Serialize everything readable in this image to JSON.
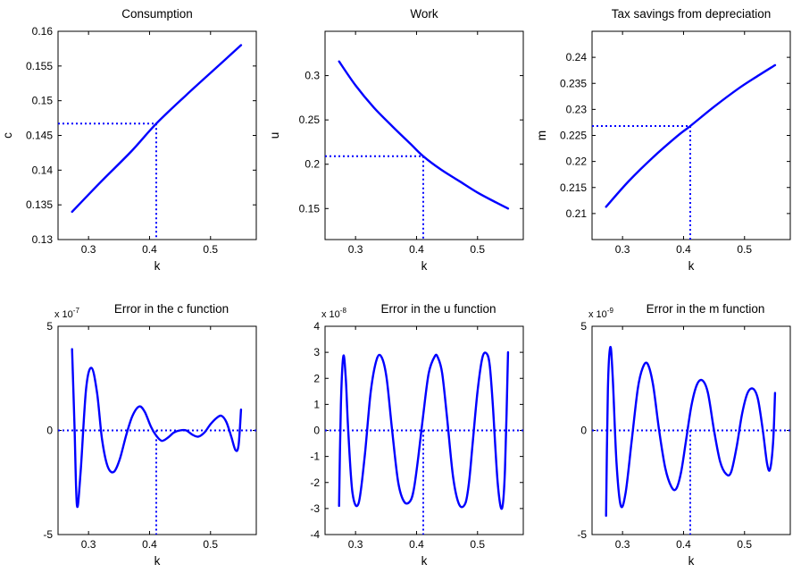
{
  "chart_data": [
    {
      "type": "line",
      "title": "Consumption",
      "xlabel": "k",
      "ylabel": "c",
      "exponent": "",
      "xlim": [
        0.25,
        0.575
      ],
      "ylim": [
        0.13,
        0.16
      ],
      "xticks": [
        0.3,
        0.4,
        0.5
      ],
      "xtick_labels": [
        "0.3",
        "0.4",
        "0.5"
      ],
      "yticks": [
        0.13,
        0.135,
        0.14,
        0.145,
        0.15,
        0.155,
        0.16
      ],
      "ytick_labels": [
        "0.13",
        "0.135",
        "0.14",
        "0.145",
        "0.15",
        "0.155",
        "0.16"
      ],
      "x": [
        0.273,
        0.32,
        0.37,
        0.411,
        0.46,
        0.51,
        0.55
      ],
      "y": [
        0.134,
        0.1383,
        0.1427,
        0.1467,
        0.1508,
        0.1548,
        0.158
      ],
      "guide": {
        "x": 0.411,
        "y": 0.1467
      }
    },
    {
      "type": "line",
      "title": "Work",
      "xlabel": "k",
      "ylabel": "u",
      "exponent": "",
      "xlim": [
        0.25,
        0.575
      ],
      "ylim": [
        0.115,
        0.35
      ],
      "xticks": [
        0.3,
        0.4,
        0.5
      ],
      "xtick_labels": [
        "0.3",
        "0.4",
        "0.5"
      ],
      "yticks": [
        0.15,
        0.2,
        0.25,
        0.3
      ],
      "ytick_labels": [
        "0.15",
        "0.2",
        "0.25",
        "0.3"
      ],
      "x": [
        0.273,
        0.3,
        0.33,
        0.36,
        0.39,
        0.411,
        0.44,
        0.47,
        0.5,
        0.53,
        0.55
      ],
      "y": [
        0.316,
        0.289,
        0.264,
        0.243,
        0.223,
        0.209,
        0.194,
        0.181,
        0.168,
        0.157,
        0.15
      ],
      "guide": {
        "x": 0.411,
        "y": 0.209
      }
    },
    {
      "type": "line",
      "title": "Tax savings from depreciation",
      "xlabel": "k",
      "ylabel": "m",
      "exponent": "",
      "xlim": [
        0.25,
        0.575
      ],
      "ylim": [
        0.205,
        0.245
      ],
      "xticks": [
        0.3,
        0.4,
        0.5
      ],
      "xtick_labels": [
        "0.3",
        "0.4",
        "0.5"
      ],
      "yticks": [
        0.21,
        0.215,
        0.22,
        0.225,
        0.23,
        0.235,
        0.24
      ],
      "ytick_labels": [
        "0.21",
        "0.215",
        "0.22",
        "0.225",
        "0.23",
        "0.235",
        "0.24"
      ],
      "x": [
        0.273,
        0.31,
        0.35,
        0.39,
        0.411,
        0.45,
        0.49,
        0.52,
        0.55
      ],
      "y": [
        0.2113,
        0.2162,
        0.2208,
        0.2249,
        0.2268,
        0.2305,
        0.234,
        0.2363,
        0.2385
      ],
      "guide": {
        "x": 0.411,
        "y": 0.2268
      }
    },
    {
      "type": "line",
      "title": "Error in the c function",
      "xlabel": "k",
      "ylabel": "",
      "exponent": "x 10",
      "exponent_power": "-7",
      "xlim": [
        0.25,
        0.575
      ],
      "ylim": [
        -5,
        5
      ],
      "xticks": [
        0.3,
        0.4,
        0.5
      ],
      "xtick_labels": [
        "0.3",
        "0.4",
        "0.5"
      ],
      "yticks": [
        -5,
        0,
        5
      ],
      "ytick_labels": [
        "-5",
        "0",
        "5"
      ],
      "x": [
        0.273,
        0.277,
        0.281,
        0.287,
        0.296,
        0.305,
        0.314,
        0.322,
        0.331,
        0.341,
        0.351,
        0.362,
        0.372,
        0.383,
        0.392,
        0.402,
        0.411,
        0.42,
        0.43,
        0.44,
        0.45,
        0.46,
        0.47,
        0.48,
        0.49,
        0.5,
        0.51,
        0.518,
        0.526,
        0.534,
        0.541,
        0.546,
        0.55
      ],
      "y": [
        3.9,
        0.2,
        -3.6,
        -2.0,
        2.0,
        3.0,
        1.8,
        -0.4,
        -1.7,
        -2.0,
        -1.4,
        -0.2,
        0.7,
        1.15,
        0.9,
        0.2,
        -0.25,
        -0.5,
        -0.35,
        -0.1,
        0.0,
        0.0,
        -0.2,
        -0.3,
        -0.1,
        0.3,
        0.6,
        0.7,
        0.4,
        -0.3,
        -0.95,
        -0.7,
        1.0
      ],
      "guide": {
        "x": 0.411,
        "y": 0
      }
    },
    {
      "type": "line",
      "title": "Error in the u function",
      "xlabel": "k",
      "ylabel": "",
      "exponent": "x 10",
      "exponent_power": "-8",
      "xlim": [
        0.25,
        0.575
      ],
      "ylim": [
        -4,
        4
      ],
      "xticks": [
        0.3,
        0.4,
        0.5
      ],
      "xtick_labels": [
        "0.3",
        "0.4",
        "0.5"
      ],
      "yticks": [
        -4,
        -3,
        -2,
        -1,
        0,
        1,
        2,
        3,
        4
      ],
      "ytick_labels": [
        "-4",
        "-3",
        "-2",
        "-1",
        "0",
        "1",
        "2",
        "3",
        "4"
      ],
      "x": [
        0.273,
        0.276,
        0.28,
        0.284,
        0.288,
        0.295,
        0.305,
        0.315,
        0.325,
        0.335,
        0.343,
        0.351,
        0.36,
        0.37,
        0.38,
        0.39,
        0.396,
        0.403,
        0.411,
        0.42,
        0.43,
        0.435,
        0.442,
        0.45,
        0.46,
        0.47,
        0.48,
        0.486,
        0.492,
        0.5,
        0.508,
        0.515,
        0.52,
        0.525,
        0.533,
        0.54,
        0.545,
        0.55
      ],
      "y": [
        -2.9,
        1.0,
        2.85,
        2.0,
        0.0,
        -2.4,
        -2.8,
        -1.0,
        1.5,
        2.75,
        2.8,
        2.0,
        0.0,
        -2.0,
        -2.75,
        -2.7,
        -2.2,
        -1.0,
        0.6,
        2.2,
        2.85,
        2.8,
        2.2,
        0.5,
        -1.8,
        -2.85,
        -2.8,
        -2.0,
        -0.5,
        1.5,
        2.8,
        2.95,
        2.5,
        1.0,
        -2.0,
        -3.0,
        -1.5,
        3.0
      ],
      "guide": {
        "x": 0.411,
        "y": 0
      }
    },
    {
      "type": "line",
      "title": "Error in the m function",
      "xlabel": "k",
      "ylabel": "",
      "exponent": "x 10",
      "exponent_power": "-9",
      "xlim": [
        0.25,
        0.575
      ],
      "ylim": [
        -5,
        5
      ],
      "xticks": [
        0.3,
        0.4,
        0.5
      ],
      "xtick_labels": [
        "0.3",
        "0.4",
        "0.5"
      ],
      "yticks": [
        -5,
        0,
        5
      ],
      "ytick_labels": [
        "-5",
        "0",
        "5"
      ],
      "x": [
        0.273,
        0.276,
        0.28,
        0.284,
        0.29,
        0.297,
        0.305,
        0.315,
        0.325,
        0.333,
        0.341,
        0.35,
        0.36,
        0.37,
        0.38,
        0.388,
        0.396,
        0.404,
        0.413,
        0.422,
        0.431,
        0.44,
        0.45,
        0.46,
        0.47,
        0.478,
        0.487,
        0.496,
        0.505,
        0.514,
        0.522,
        0.53,
        0.537,
        0.542,
        0.547,
        0.55
      ],
      "y": [
        -4.1,
        2.0,
        4.0,
        2.5,
        -1.5,
        -3.6,
        -3.0,
        -0.5,
        2.0,
        3.0,
        3.2,
        2.2,
        0.0,
        -1.8,
        -2.7,
        -2.8,
        -2.0,
        -0.5,
        1.2,
        2.2,
        2.4,
        1.8,
        0.0,
        -1.5,
        -2.1,
        -2.0,
        -0.8,
        0.8,
        1.8,
        2.0,
        1.5,
        0.0,
        -1.6,
        -1.85,
        -0.5,
        1.8
      ],
      "guide": {
        "x": 0.411,
        "y": 0
      }
    }
  ]
}
